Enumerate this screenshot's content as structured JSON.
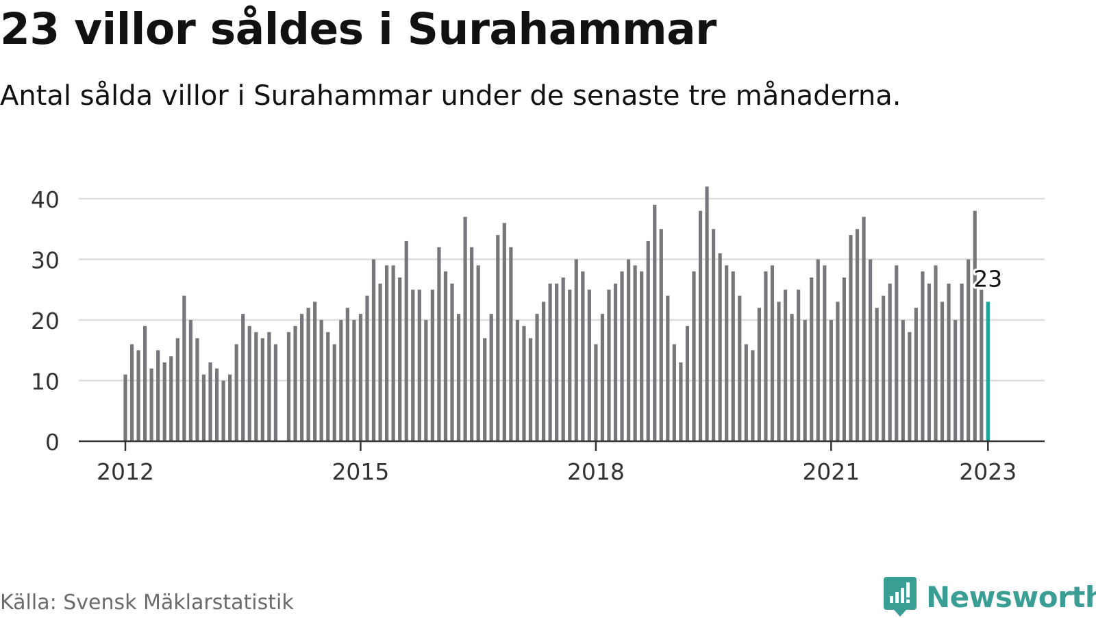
{
  "title": "23 villor såldes i Surahammar",
  "subtitle": "Antal sålda villor i Surahammar under de senaste tre månaderna.",
  "source": "Källa: Svensk Mäklarstatistik",
  "brand": {
    "name": "Newsworthy",
    "color": "#3a9e95",
    "icon": "newsworthy-logo-icon"
  },
  "colors": {
    "bar": "#76767b",
    "highlight": "#1aa598",
    "grid": "#dddddd",
    "axis": "#333333"
  },
  "chart_data": {
    "type": "bar",
    "title": "23 villor såldes i Surahammar",
    "subtitle": "Antal sålda villor i Surahammar under de senaste tre månaderna.",
    "xlabel": "",
    "ylabel": "",
    "ylim": [
      0,
      42
    ],
    "yticks": [
      "0",
      "10",
      "20",
      "30",
      "40"
    ],
    "xticks": [
      "2012",
      "2015",
      "2018",
      "2021",
      "2023"
    ],
    "grid": true,
    "start": "2012-01",
    "highlight_label": "23",
    "values": [
      11,
      16,
      15,
      19,
      12,
      15,
      13,
      14,
      17,
      24,
      20,
      17,
      11,
      13,
      12,
      10,
      11,
      16,
      21,
      19,
      18,
      17,
      18,
      16,
      null,
      18,
      19,
      21,
      22,
      23,
      20,
      18,
      16,
      20,
      22,
      20,
      21,
      24,
      30,
      26,
      29,
      29,
      27,
      33,
      25,
      25,
      20,
      25,
      32,
      28,
      26,
      21,
      37,
      32,
      29,
      17,
      21,
      34,
      36,
      32,
      20,
      19,
      17,
      21,
      23,
      26,
      26,
      27,
      25,
      30,
      28,
      25,
      16,
      21,
      25,
      26,
      28,
      30,
      29,
      28,
      33,
      39,
      35,
      24,
      16,
      13,
      19,
      28,
      38,
      42,
      35,
      31,
      29,
      28,
      24,
      16,
      15,
      22,
      28,
      29,
      23,
      25,
      21,
      25,
      20,
      27,
      30,
      29,
      20,
      23,
      27,
      34,
      35,
      37,
      30,
      22,
      24,
      26,
      29,
      20,
      18,
      22,
      28,
      26,
      29,
      23,
      26,
      20,
      26,
      30,
      38,
      25,
      23
    ]
  }
}
